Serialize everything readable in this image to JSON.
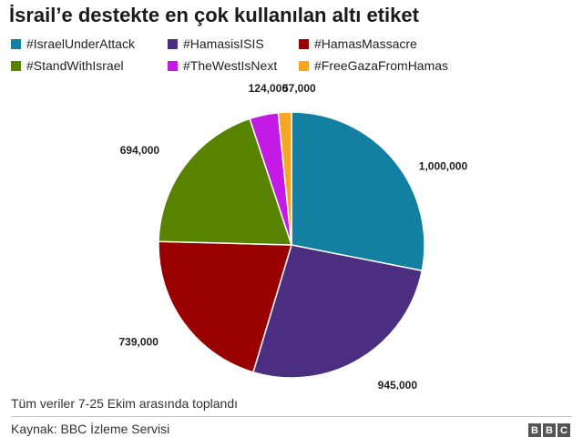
{
  "chart_data": {
    "type": "pie",
    "title": "İsrail’e destekte en çok kullanılan altı etiket",
    "categories": [
      "#IsraelUnderAttack",
      "#HamasisISIS",
      "#HamasMassacre",
      "#StandWithIsrael",
      "#TheWestIsNext",
      "#FreeGazaFromHamas"
    ],
    "values": [
      1000000,
      945000,
      739000,
      694000,
      124000,
      57000
    ],
    "value_labels": [
      "1,000,000",
      "945,000",
      "739,000",
      "694,000",
      "124,000",
      "57,000"
    ],
    "colors": [
      "#1380a1",
      "#4b2e7f",
      "#990000",
      "#588300",
      "#c31ae6",
      "#f5a623"
    ],
    "legend_position": "top"
  },
  "note": "Tüm veriler 7-25 Ekim  arasında toplandı",
  "source": "Kaynak: BBC İzleme Servisi",
  "logo": [
    "B",
    "B",
    "C"
  ]
}
